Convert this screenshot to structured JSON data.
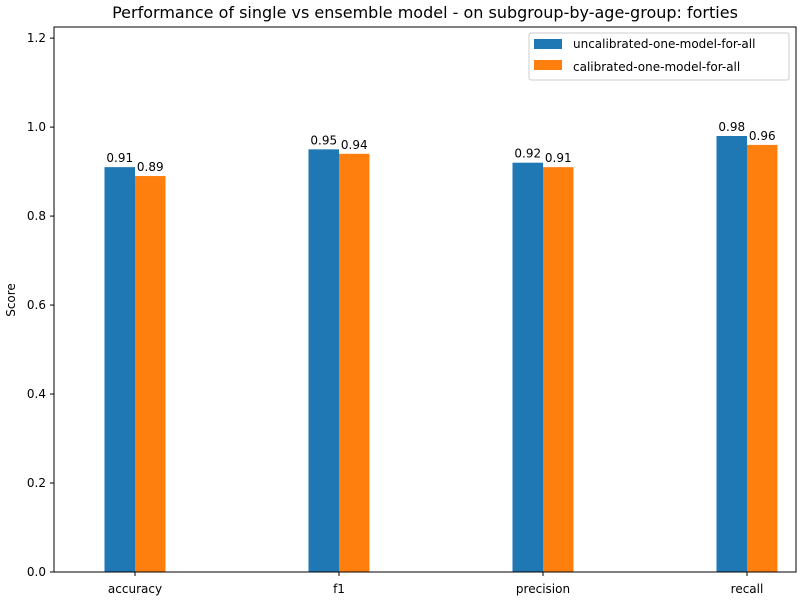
{
  "chart_data": {
    "type": "bar",
    "title": "Performance of single vs ensemble model - on subgroup-by-age-group: forties",
    "xlabel": "",
    "ylabel": "Score",
    "categories": [
      "accuracy",
      "f1",
      "precision",
      "recall"
    ],
    "series": [
      {
        "name": "uncalibrated-one-model-for-all",
        "color": "#1f77b4",
        "values": [
          0.91,
          0.95,
          0.92,
          0.98
        ],
        "labels": [
          "0.91",
          "0.95",
          "0.92",
          "0.98"
        ]
      },
      {
        "name": "calibrated-one-model-for-all",
        "color": "#ff7f0e",
        "values": [
          0.89,
          0.94,
          0.91,
          0.96
        ],
        "labels": [
          "0.89",
          "0.94",
          "0.91",
          "0.96"
        ]
      }
    ],
    "ylim": [
      0,
      1.225
    ],
    "yticks": [
      0.0,
      0.2,
      0.4,
      0.6,
      0.8,
      1.0,
      1.2
    ],
    "ytick_labels": [
      "0.0",
      "0.2",
      "0.4",
      "0.6",
      "0.8",
      "1.0",
      "1.2"
    ],
    "grid": false,
    "legend_position": "top-right"
  }
}
